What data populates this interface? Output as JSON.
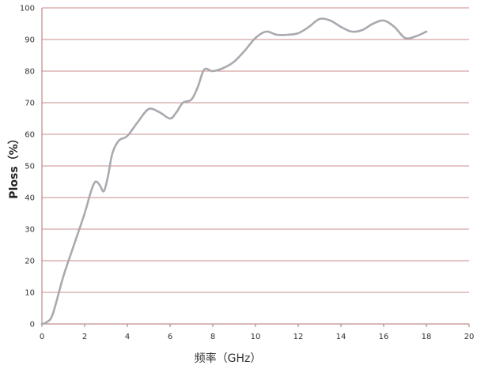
{
  "chart_data": {
    "type": "line",
    "xlabel": "频率（GHz）",
    "ylabel": "Ploss（%）",
    "xlim": [
      0,
      20
    ],
    "ylim": [
      0,
      100
    ],
    "xticks": [
      "0",
      "2",
      "4",
      "6",
      "8",
      "10",
      "12",
      "14",
      "16",
      "18",
      "20"
    ],
    "yticks": [
      "0",
      "10",
      "20",
      "30",
      "40",
      "50",
      "60",
      "70",
      "80",
      "90",
      "100"
    ],
    "grid": "horizontal",
    "colors": {
      "line": "#a9a9b0",
      "grid": "#c98c8c"
    },
    "series": [
      {
        "x": [
          0.0,
          0.2,
          0.5,
          1.0,
          1.5,
          2.0,
          2.3,
          2.5,
          2.7,
          2.9,
          3.1,
          3.3,
          3.6,
          4.0,
          4.5,
          5.0,
          5.5,
          6.0,
          6.3,
          6.6,
          7.0,
          7.3,
          7.6,
          8.0,
          8.5,
          9.0,
          9.5,
          10.0,
          10.5,
          11.0,
          11.5,
          12.0,
          12.5,
          13.0,
          13.5,
          14.0,
          14.5,
          15.0,
          15.5,
          16.0,
          16.5,
          17.0,
          17.5,
          18.0
        ],
        "y": [
          0,
          0.5,
          3,
          15,
          25,
          35,
          42,
          45,
          44,
          42,
          47,
          54,
          58,
          59.5,
          64,
          68,
          67,
          65,
          67,
          70,
          71,
          75,
          80.5,
          80,
          81,
          83,
          86.5,
          90.5,
          92.5,
          91.5,
          91.5,
          92,
          94,
          96.5,
          96,
          94,
          92.5,
          93,
          95,
          96,
          94,
          90.5,
          91,
          92.5
        ]
      }
    ]
  }
}
